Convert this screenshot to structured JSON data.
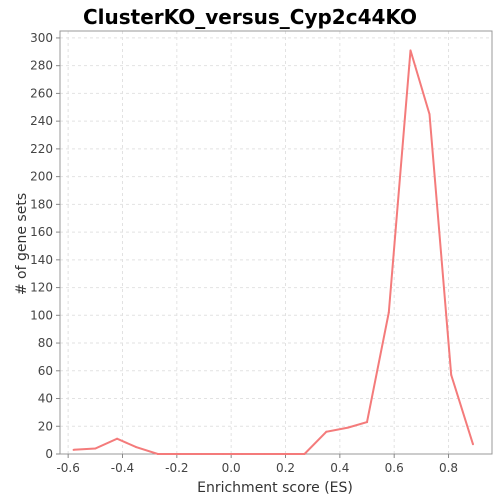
{
  "chart_data": {
    "type": "line",
    "title": "ClusterKO_versus_Cyp2c44KO",
    "xlabel": "Enrichment score (ES)",
    "ylabel": "# of gene sets",
    "xlim": [
      -0.63,
      0.96
    ],
    "ylim": [
      0,
      305
    ],
    "xticks": [
      -0.6,
      -0.4,
      -0.2,
      0.0,
      0.2,
      0.4,
      0.6,
      0.8
    ],
    "xtick_labels": [
      "-0.6",
      "-0.4",
      "-0.2",
      "0.0",
      "0.2",
      "0.4",
      "0.6",
      "0.8"
    ],
    "yticks": [
      0,
      20,
      40,
      60,
      80,
      100,
      120,
      140,
      160,
      180,
      200,
      220,
      240,
      260,
      280,
      300
    ],
    "ytick_labels": [
      "0",
      "20",
      "40",
      "60",
      "80",
      "100",
      "120",
      "140",
      "160",
      "180",
      "200",
      "220",
      "240",
      "260",
      "280",
      "300"
    ],
    "grid": true,
    "color": "#f47b7b",
    "series": [
      {
        "x": [
          -0.58,
          -0.5,
          -0.42,
          -0.35,
          -0.27,
          -0.19,
          -0.11,
          -0.03,
          0.04,
          0.12,
          0.2,
          0.27,
          0.35,
          0.43,
          0.5,
          0.58,
          0.66,
          0.73,
          0.81,
          0.89
        ],
        "values": [
          3,
          4,
          11,
          5,
          0,
          0,
          0,
          0,
          0,
          0,
          0,
          0,
          16,
          19,
          23,
          102,
          291,
          245,
          57,
          7
        ]
      }
    ]
  }
}
